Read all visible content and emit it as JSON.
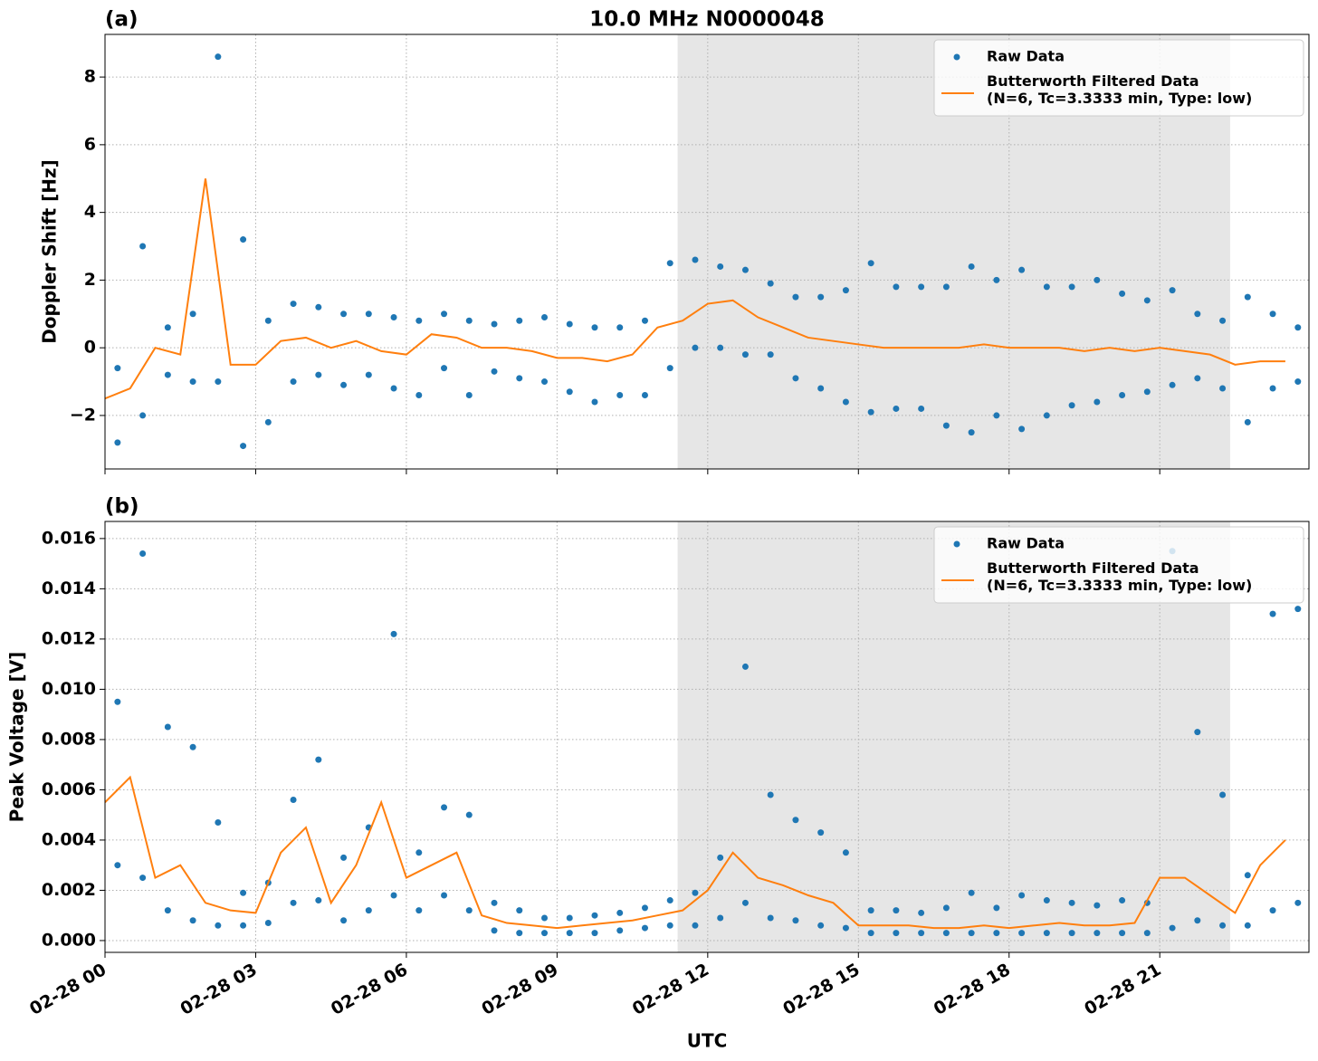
{
  "chart_data": [
    {
      "type": "scatter",
      "panel_label": "(a)",
      "title": "10.0 MHz N0000048",
      "ylabel": "Doppler Shift [Hz]",
      "xlim": [
        0,
        23.97
      ],
      "ylim": [
        -3.58,
        9.26
      ],
      "xticks": [
        0,
        3,
        6,
        9,
        12,
        15,
        18,
        21
      ],
      "yticks": [
        {
          "value": -2,
          "label": "−2"
        },
        0,
        2,
        4,
        6,
        8
      ],
      "grid": true,
      "shaded_span": [
        11.4,
        22.4
      ],
      "legend": "upper right",
      "series": [
        {
          "name": "Raw Data",
          "type": "scatter",
          "color": "#1f77b4",
          "x": [
            0.25,
            0.25,
            0.75,
            0.75,
            1.25,
            1.25,
            1.75,
            1.75,
            2.25,
            2.25,
            2.75,
            2.75,
            3.25,
            3.25,
            3.75,
            3.75,
            4.25,
            4.25,
            4.75,
            4.75,
            5.25,
            5.25,
            5.75,
            5.75,
            6.25,
            6.25,
            6.75,
            6.75,
            7.25,
            7.25,
            7.75,
            7.75,
            8.25,
            8.25,
            8.75,
            8.75,
            9.25,
            9.25,
            9.75,
            9.75,
            10.25,
            10.25,
            10.75,
            10.75,
            11.25,
            11.25,
            11.75,
            11.75,
            12.25,
            12.25,
            12.75,
            12.75,
            13.25,
            13.25,
            13.75,
            13.75,
            14.25,
            14.25,
            14.75,
            14.75,
            15.25,
            15.25,
            15.75,
            15.75,
            16.25,
            16.25,
            16.75,
            16.75,
            17.25,
            17.25,
            17.75,
            17.75,
            18.25,
            18.25,
            18.75,
            18.75,
            19.25,
            19.25,
            19.75,
            19.75,
            20.25,
            20.25,
            20.75,
            20.75,
            21.25,
            21.25,
            21.75,
            21.75,
            22.25,
            22.25,
            22.75,
            22.75,
            23.25,
            23.25,
            23.75,
            23.75
          ],
          "values": [
            -0.6,
            -2.8,
            3.0,
            -2.0,
            0.6,
            -0.8,
            1.0,
            -1.0,
            8.6,
            -1.0,
            3.2,
            -2.9,
            0.8,
            -2.2,
            1.3,
            -1.0,
            1.2,
            -0.8,
            1.0,
            -1.1,
            1.0,
            -0.8,
            0.9,
            -1.2,
            0.8,
            -1.4,
            1.0,
            -0.6,
            0.8,
            -1.4,
            0.7,
            -0.7,
            0.8,
            -0.9,
            0.9,
            -1.0,
            0.7,
            -1.3,
            0.6,
            -1.6,
            0.6,
            -1.4,
            0.8,
            -1.4,
            2.5,
            -0.6,
            2.6,
            0,
            2.4,
            0,
            2.3,
            -0.2,
            1.9,
            -0.2,
            1.5,
            -0.9,
            1.5,
            -1.2,
            1.7,
            -1.6,
            2.5,
            -1.9,
            1.8,
            -1.8,
            1.8,
            -1.8,
            1.8,
            -2.3,
            2.4,
            -2.5,
            2.0,
            -2.0,
            2.3,
            -2.4,
            1.8,
            -2.0,
            1.8,
            -1.7,
            2.0,
            -1.6,
            1.6,
            -1.4,
            1.4,
            -1.3,
            1.7,
            -1.1,
            1.0,
            -0.9,
            0.8,
            -1.2,
            1.5,
            -2.2,
            1.0,
            -1.2,
            0.6,
            -1.0
          ]
        },
        {
          "name": "Butterworth Filtered Data\n(N=6, Tc=3.3333 min, Type: low)",
          "type": "line",
          "color": "#ff7f0e",
          "x": [
            0,
            0.5,
            1,
            1.5,
            2,
            2.5,
            3,
            3.5,
            4,
            4.5,
            5,
            5.5,
            6,
            6.5,
            7,
            7.5,
            8,
            8.5,
            9,
            9.5,
            10,
            10.5,
            11,
            11.5,
            12,
            12.5,
            13,
            13.5,
            14,
            14.5,
            15,
            15.5,
            16,
            16.5,
            17,
            17.5,
            18,
            18.5,
            19,
            19.5,
            20,
            20.5,
            21,
            21.5,
            22,
            22.5,
            23,
            23.5
          ],
          "values": [
            -1.5,
            -1.2,
            0,
            -0.2,
            5,
            -0.5,
            -0.5,
            0.2,
            0.3,
            0,
            0.2,
            -0.1,
            -0.2,
            0.4,
            0.3,
            0,
            0,
            -0.1,
            -0.3,
            -0.3,
            -0.4,
            -0.2,
            0.6,
            0.8,
            1.3,
            1.4,
            0.9,
            0.6,
            0.3,
            0.2,
            0.1,
            0,
            0,
            0,
            0,
            0.1,
            0,
            0,
            0,
            -0.1,
            0,
            -0.1,
            0,
            -0.1,
            -0.2,
            -0.5,
            -0.4,
            -0.4
          ]
        }
      ]
    },
    {
      "type": "scatter",
      "panel_label": "(b)",
      "ylabel": "Peak Voltage [V]",
      "xlabel": "UTC",
      "xlim": [
        0,
        23.97
      ],
      "ylim": [
        -0.00047,
        0.01668
      ],
      "xticks": [
        {
          "value": 0,
          "label": "02-28 00"
        },
        {
          "value": 3,
          "label": "02-28 03"
        },
        {
          "value": 6,
          "label": "02-28 06"
        },
        {
          "value": 9,
          "label": "02-28 09"
        },
        {
          "value": 12,
          "label": "02-28 12"
        },
        {
          "value": 15,
          "label": "02-28 15"
        },
        {
          "value": 18,
          "label": "02-28 18"
        },
        {
          "value": 21,
          "label": "02-28 21"
        }
      ],
      "yticks": [
        {
          "value": 0,
          "label": "0.000"
        },
        {
          "value": 0.002,
          "label": "0.002"
        },
        {
          "value": 0.004,
          "label": "0.004"
        },
        {
          "value": 0.006,
          "label": "0.006"
        },
        {
          "value": 0.008,
          "label": "0.008"
        },
        {
          "value": 0.01,
          "label": "0.010"
        },
        {
          "value": 0.012,
          "label": "0.012"
        },
        {
          "value": 0.014,
          "label": "0.014"
        },
        {
          "value": 0.016,
          "label": "0.016"
        }
      ],
      "grid": true,
      "shaded_span": [
        11.4,
        22.4
      ],
      "legend": "upper right",
      "series": [
        {
          "name": "Raw Data",
          "type": "scatter",
          "color": "#1f77b4",
          "x": [
            0.25,
            0.25,
            0.75,
            0.75,
            1.25,
            1.25,
            1.75,
            1.75,
            2.25,
            2.25,
            2.75,
            2.75,
            3.25,
            3.25,
            3.75,
            3.75,
            4.25,
            4.25,
            4.75,
            4.75,
            5.25,
            5.25,
            5.75,
            5.75,
            6.25,
            6.25,
            6.75,
            6.75,
            7.25,
            7.25,
            7.75,
            7.75,
            8.25,
            8.25,
            8.75,
            8.75,
            9.25,
            9.25,
            9.75,
            9.75,
            10.25,
            10.25,
            10.75,
            10.75,
            11.25,
            11.25,
            11.75,
            11.75,
            12.25,
            12.25,
            12.75,
            12.75,
            13.25,
            13.25,
            13.75,
            13.75,
            14.25,
            14.25,
            14.75,
            14.75,
            15.25,
            15.25,
            15.75,
            15.75,
            16.25,
            16.25,
            16.75,
            16.75,
            17.25,
            17.25,
            17.75,
            17.75,
            18.25,
            18.25,
            18.75,
            18.75,
            19.25,
            19.25,
            19.75,
            19.75,
            20.25,
            20.25,
            20.75,
            20.75,
            21.25,
            21.25,
            21.75,
            21.75,
            22.25,
            22.25,
            22.75,
            22.75,
            23.25,
            23.25,
            23.75,
            23.75
          ],
          "values": [
            0.0095,
            0.003,
            0.0154,
            0.0025,
            0.0085,
            0.0012,
            0.0077,
            0.0008,
            0.0047,
            0.0006,
            0.0019,
            0.0006,
            0.0023,
            0.0007,
            0.0056,
            0.0015,
            0.0072,
            0.0016,
            0.0033,
            0.0008,
            0.0045,
            0.0012,
            0.0122,
            0.0018,
            0.0035,
            0.0012,
            0.0053,
            0.0018,
            0.005,
            0.0012,
            0.0015,
            0.0004,
            0.0012,
            0.0003,
            0.0009,
            0.0003,
            0.0009,
            0.0003,
            0.001,
            0.0003,
            0.0011,
            0.0004,
            0.0013,
            0.0005,
            0.0016,
            0.0006,
            0.0019,
            0.0006,
            0.0033,
            0.0009,
            0.0109,
            0.0015,
            0.0058,
            0.0009,
            0.0048,
            0.0008,
            0.0043,
            0.0006,
            0.0035,
            0.0005,
            0.0012,
            0.0003,
            0.0012,
            0.0003,
            0.0011,
            0.0003,
            0.0013,
            0.0003,
            0.0019,
            0.0003,
            0.0013,
            0.0003,
            0.0018,
            0.0003,
            0.0016,
            0.0003,
            0.0015,
            0.0003,
            0.0014,
            0.0003,
            0.0016,
            0.0003,
            0.0015,
            0.0003,
            0.0155,
            0.0005,
            0.0083,
            0.0008,
            0.0058,
            0.0006,
            0.0026,
            0.0006,
            0.013,
            0.0012,
            0.0132,
            0.0015
          ]
        },
        {
          "name": "Butterworth Filtered Data\n(N=6, Tc=3.3333 min, Type: low)",
          "type": "line",
          "color": "#ff7f0e",
          "x": [
            0,
            0.5,
            1,
            1.5,
            2,
            2.5,
            3,
            3.5,
            4,
            4.5,
            5,
            5.5,
            6,
            6.5,
            7,
            7.5,
            8,
            8.5,
            9,
            9.5,
            10,
            10.5,
            11,
            11.5,
            12,
            12.5,
            13,
            13.5,
            14,
            14.5,
            15,
            15.5,
            16,
            16.5,
            17,
            17.5,
            18,
            18.5,
            19,
            19.5,
            20,
            20.5,
            21,
            21.5,
            22,
            22.5,
            23,
            23.5
          ],
          "values": [
            0.0055,
            0.0065,
            0.0025,
            0.003,
            0.0015,
            0.0012,
            0.0011,
            0.0035,
            0.0045,
            0.0015,
            0.003,
            0.0055,
            0.0025,
            0.003,
            0.0035,
            0.001,
            0.0007,
            0.0006,
            0.0005,
            0.0006,
            0.0007,
            0.0008,
            0.001,
            0.0012,
            0.002,
            0.0035,
            0.0025,
            0.0022,
            0.0018,
            0.0015,
            0.0006,
            0.0006,
            0.0006,
            0.0005,
            0.0005,
            0.0006,
            0.0005,
            0.0006,
            0.0007,
            0.0006,
            0.0006,
            0.0007,
            0.0025,
            0.0025,
            0.0018,
            0.0011,
            0.003,
            0.004
          ]
        }
      ]
    }
  ]
}
